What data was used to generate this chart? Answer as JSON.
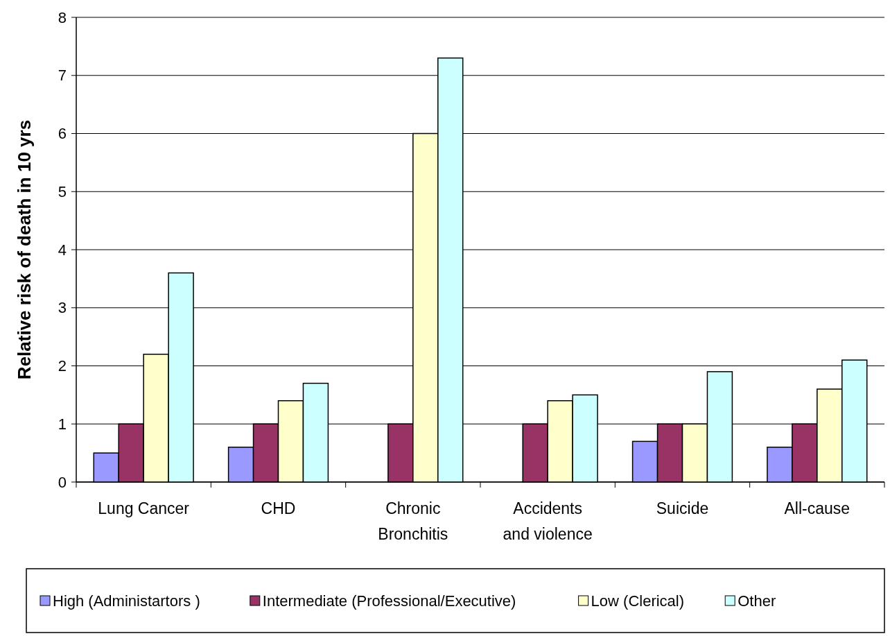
{
  "chart_data": {
    "type": "bar",
    "ylabel": "Relative risk of death in 10 yrs",
    "categories": [
      "Lung Cancer",
      "CHD",
      "Chronic Bronchitis",
      "Accidents and violence",
      "Suicide",
      "All-cause"
    ],
    "series": [
      {
        "name": "High (Administartors )",
        "color": "#9999ff",
        "values": [
          0.5,
          0.6,
          null,
          null,
          0.7,
          0.6
        ]
      },
      {
        "name": "Intermediate (Professional/Executive)",
        "color": "#993366",
        "values": [
          1,
          1,
          1,
          1,
          1,
          1
        ]
      },
      {
        "name": "Low (Clerical)",
        "color": "#ffffcc",
        "values": [
          2.2,
          1.4,
          6,
          1.4,
          1,
          1.6
        ]
      },
      {
        "name": "Other",
        "color": "#ccffff",
        "values": [
          3.6,
          1.7,
          7.3,
          1.5,
          1.9,
          2.1
        ]
      }
    ],
    "ylim": [
      0,
      8
    ],
    "yticks": [
      0,
      1,
      2,
      3,
      4,
      5,
      6,
      7,
      8
    ],
    "grid": "y",
    "legend": "bottom"
  }
}
